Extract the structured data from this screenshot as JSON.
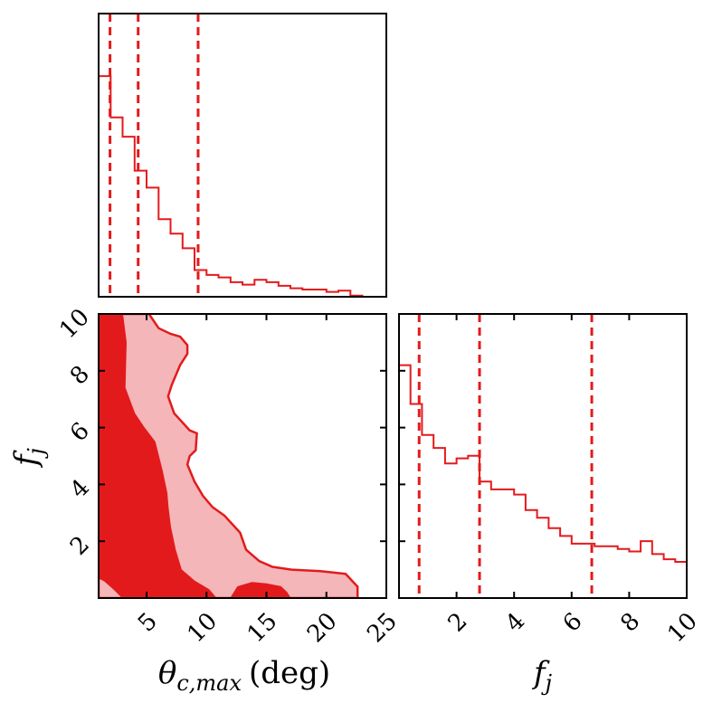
{
  "chart_data": [
    {
      "type": "histogram",
      "panel": "top-left",
      "x_range": [
        1,
        25
      ],
      "y_visible": false,
      "color": "#e31a1c",
      "bin_edges": [
        1,
        2,
        3,
        4,
        5,
        6,
        7,
        8,
        9,
        10,
        11,
        12,
        13,
        14,
        15,
        16,
        17,
        18,
        19,
        20,
        21,
        22,
        23,
        24
      ],
      "values": [
        0.91,
        0.74,
        0.66,
        0.52,
        0.45,
        0.32,
        0.26,
        0.2,
        0.11,
        0.09,
        0.08,
        0.06,
        0.05,
        0.07,
        0.06,
        0.045,
        0.035,
        0.03,
        0.03,
        0.02,
        0.025,
        0.005,
        0.0
      ],
      "ylim": [
        0,
        1
      ],
      "quantile_lines": [
        1.95,
        4.3,
        9.3
      ]
    },
    {
      "type": "contour",
      "panel": "bottom-left",
      "x_range": [
        1,
        25
      ],
      "y_range": [
        0,
        10
      ],
      "x_ticks": [
        "5",
        "10",
        "15",
        "20",
        "25"
      ],
      "y_ticks": [
        "2",
        "4",
        "6",
        "8",
        "10"
      ],
      "xlabel_main": "θ",
      "xlabel_sub": "c,max",
      "xlabel_unit": "(deg)",
      "ylabel_main": "f",
      "ylabel_sub": "j",
      "colors": {
        "inner": "#e31a1c",
        "outer": "#f4b6b8",
        "edge": "#e31a1c"
      },
      "outer_contour": [
        [
          1,
          10
        ],
        [
          5.2,
          10
        ],
        [
          6,
          9.5
        ],
        [
          7,
          9.3
        ],
        [
          7.8,
          9.2
        ],
        [
          8.4,
          8.9
        ],
        [
          8.4,
          8.6
        ],
        [
          7.8,
          8.2
        ],
        [
          7.1,
          7.5
        ],
        [
          6.8,
          7.1
        ],
        [
          7.3,
          6.5
        ],
        [
          8.6,
          5.9
        ],
        [
          9.2,
          5.8
        ],
        [
          9.1,
          5.2
        ],
        [
          8.6,
          5.0
        ],
        [
          8.4,
          4.7
        ],
        [
          9.0,
          4.1
        ],
        [
          9.7,
          3.6
        ],
        [
          10.5,
          3.2
        ],
        [
          11.5,
          2.9
        ],
        [
          12.8,
          2.3
        ],
        [
          13.3,
          1.7
        ],
        [
          14.4,
          1.3
        ],
        [
          15.5,
          1.1
        ],
        [
          17.1,
          1.0
        ],
        [
          19.5,
          0.95
        ],
        [
          21.6,
          0.85
        ],
        [
          22.6,
          0.4
        ],
        [
          22.6,
          0.0
        ],
        [
          1,
          0.0
        ]
      ],
      "inner_contour": [
        [
          1,
          10
        ],
        [
          3.0,
          10
        ],
        [
          3.3,
          9.0
        ],
        [
          3.2,
          7.4
        ],
        [
          4.0,
          6.5
        ],
        [
          4.8,
          6.0
        ],
        [
          5.7,
          5.5
        ],
        [
          6.3,
          4.5
        ],
        [
          6.7,
          3.7
        ],
        [
          6.8,
          3.2
        ],
        [
          7.0,
          2.5
        ],
        [
          7.4,
          1.7
        ],
        [
          7.9,
          1.0
        ],
        [
          9.0,
          0.6
        ],
        [
          10.2,
          0.3
        ],
        [
          10.8,
          0.0
        ],
        [
          3.0,
          0.0
        ],
        [
          2.3,
          0.3
        ],
        [
          1.5,
          0.6
        ],
        [
          1,
          0.7
        ]
      ],
      "inner_islands": [
        [
          [
            12.0,
            0.0
          ],
          [
            12.6,
            0.4
          ],
          [
            13.8,
            0.55
          ],
          [
            15.0,
            0.5
          ],
          [
            16.2,
            0.4
          ],
          [
            16.7,
            0.2
          ],
          [
            17.0,
            0.0
          ]
        ]
      ]
    },
    {
      "type": "histogram",
      "panel": "bottom-right",
      "x_range": [
        0,
        10
      ],
      "x_ticks": [
        "2",
        "4",
        "6",
        "8",
        "10"
      ],
      "y_visible": false,
      "xlabel_main": "f",
      "xlabel_sub": "j",
      "color": "#e31a1c",
      "bin_edges": [
        0,
        0.4,
        0.8,
        1.2,
        1.6,
        2.0,
        2.4,
        2.8,
        3.2,
        3.6,
        4.0,
        4.4,
        4.8,
        5.2,
        5.6,
        6.0,
        6.4,
        6.8,
        7.2,
        7.6,
        8.0,
        8.4,
        8.8,
        9.2,
        9.6,
        10.0
      ],
      "values": [
        0.9,
        0.75,
        0.63,
        0.58,
        0.52,
        0.54,
        0.55,
        0.45,
        0.42,
        0.42,
        0.4,
        0.34,
        0.31,
        0.27,
        0.24,
        0.21,
        0.21,
        0.2,
        0.2,
        0.19,
        0.18,
        0.22,
        0.17,
        0.15,
        0.14
      ],
      "ylim": [
        0,
        1
      ],
      "quantile_lines": [
        0.7,
        2.8,
        6.7
      ]
    }
  ]
}
